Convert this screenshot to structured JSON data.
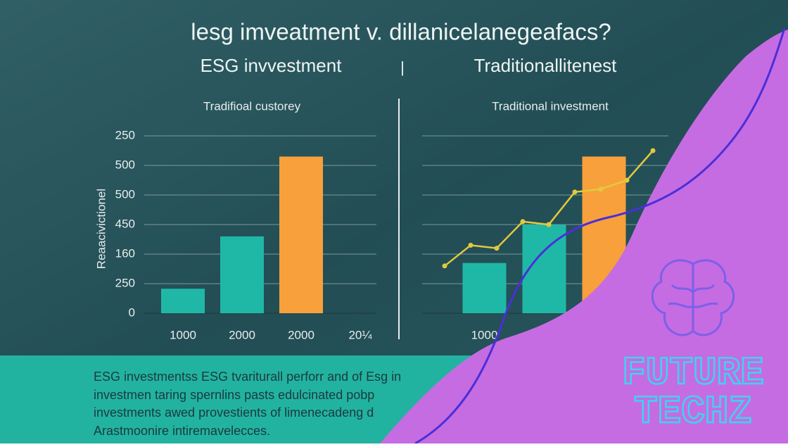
{
  "header": {
    "title": "lesg imveatment v. dillanicelanegeafacs?",
    "left_heading": "ESG invvestment",
    "divider": "|",
    "right_heading": "Traditionallitenest"
  },
  "chart_data": [
    {
      "type": "bar",
      "title": "Tradifioal custorey",
      "ylabel": "Reaacivictionel",
      "categories": [
        "1000",
        "2000",
        "2000",
        "20¼"
      ],
      "values": [
        0.83,
        2.6,
        5.3,
        null
      ],
      "colors": [
        "#1fb8a6",
        "#1fb8a6",
        "#f7a03c",
        "#1fb8a6"
      ],
      "ylim": [
        0,
        6
      ],
      "yticks": [
        0,
        {
          "value": 1,
          "label": "250"
        },
        {
          "value": 2,
          "label": "160"
        },
        {
          "value": 3,
          "label": "450"
        },
        {
          "value": 4,
          "label": "500"
        },
        {
          "value": 5,
          "label": "500"
        },
        {
          "value": 6,
          "label": "250"
        }
      ],
      "grid": true,
      "show_tick_labels": true
    },
    {
      "type": "bar",
      "title": "Traditional investment",
      "categories": [
        "1000",
        null,
        null,
        null
      ],
      "values": [
        1.7,
        3.0,
        5.3,
        null
      ],
      "colors": [
        "#1fb8a6",
        "#1fb8a6",
        "#f7a03c",
        "#1fb8a6"
      ],
      "ylim": [
        0,
        6
      ],
      "yticks": [
        0,
        1,
        2,
        3,
        4,
        5,
        6
      ],
      "grid": true,
      "show_tick_labels": false,
      "line": {
        "color": "#e3c93c",
        "values": [
          1.6,
          2.3,
          2.2,
          3.1,
          3.0,
          4.1,
          4.2,
          4.5,
          5.5
        ]
      }
    }
  ],
  "footer": {
    "lines": [
      "ESG investmentss ESG tvariturall perforr and of Esg in",
      "investmen taring spernlins pasts edulcinated pobp",
      "investments awed provestients of limenecadeng d",
      "Arastmoonire intiremavelecces."
    ]
  },
  "logo": {
    "line1": "FUTURE",
    "line2": "TECHZ"
  }
}
